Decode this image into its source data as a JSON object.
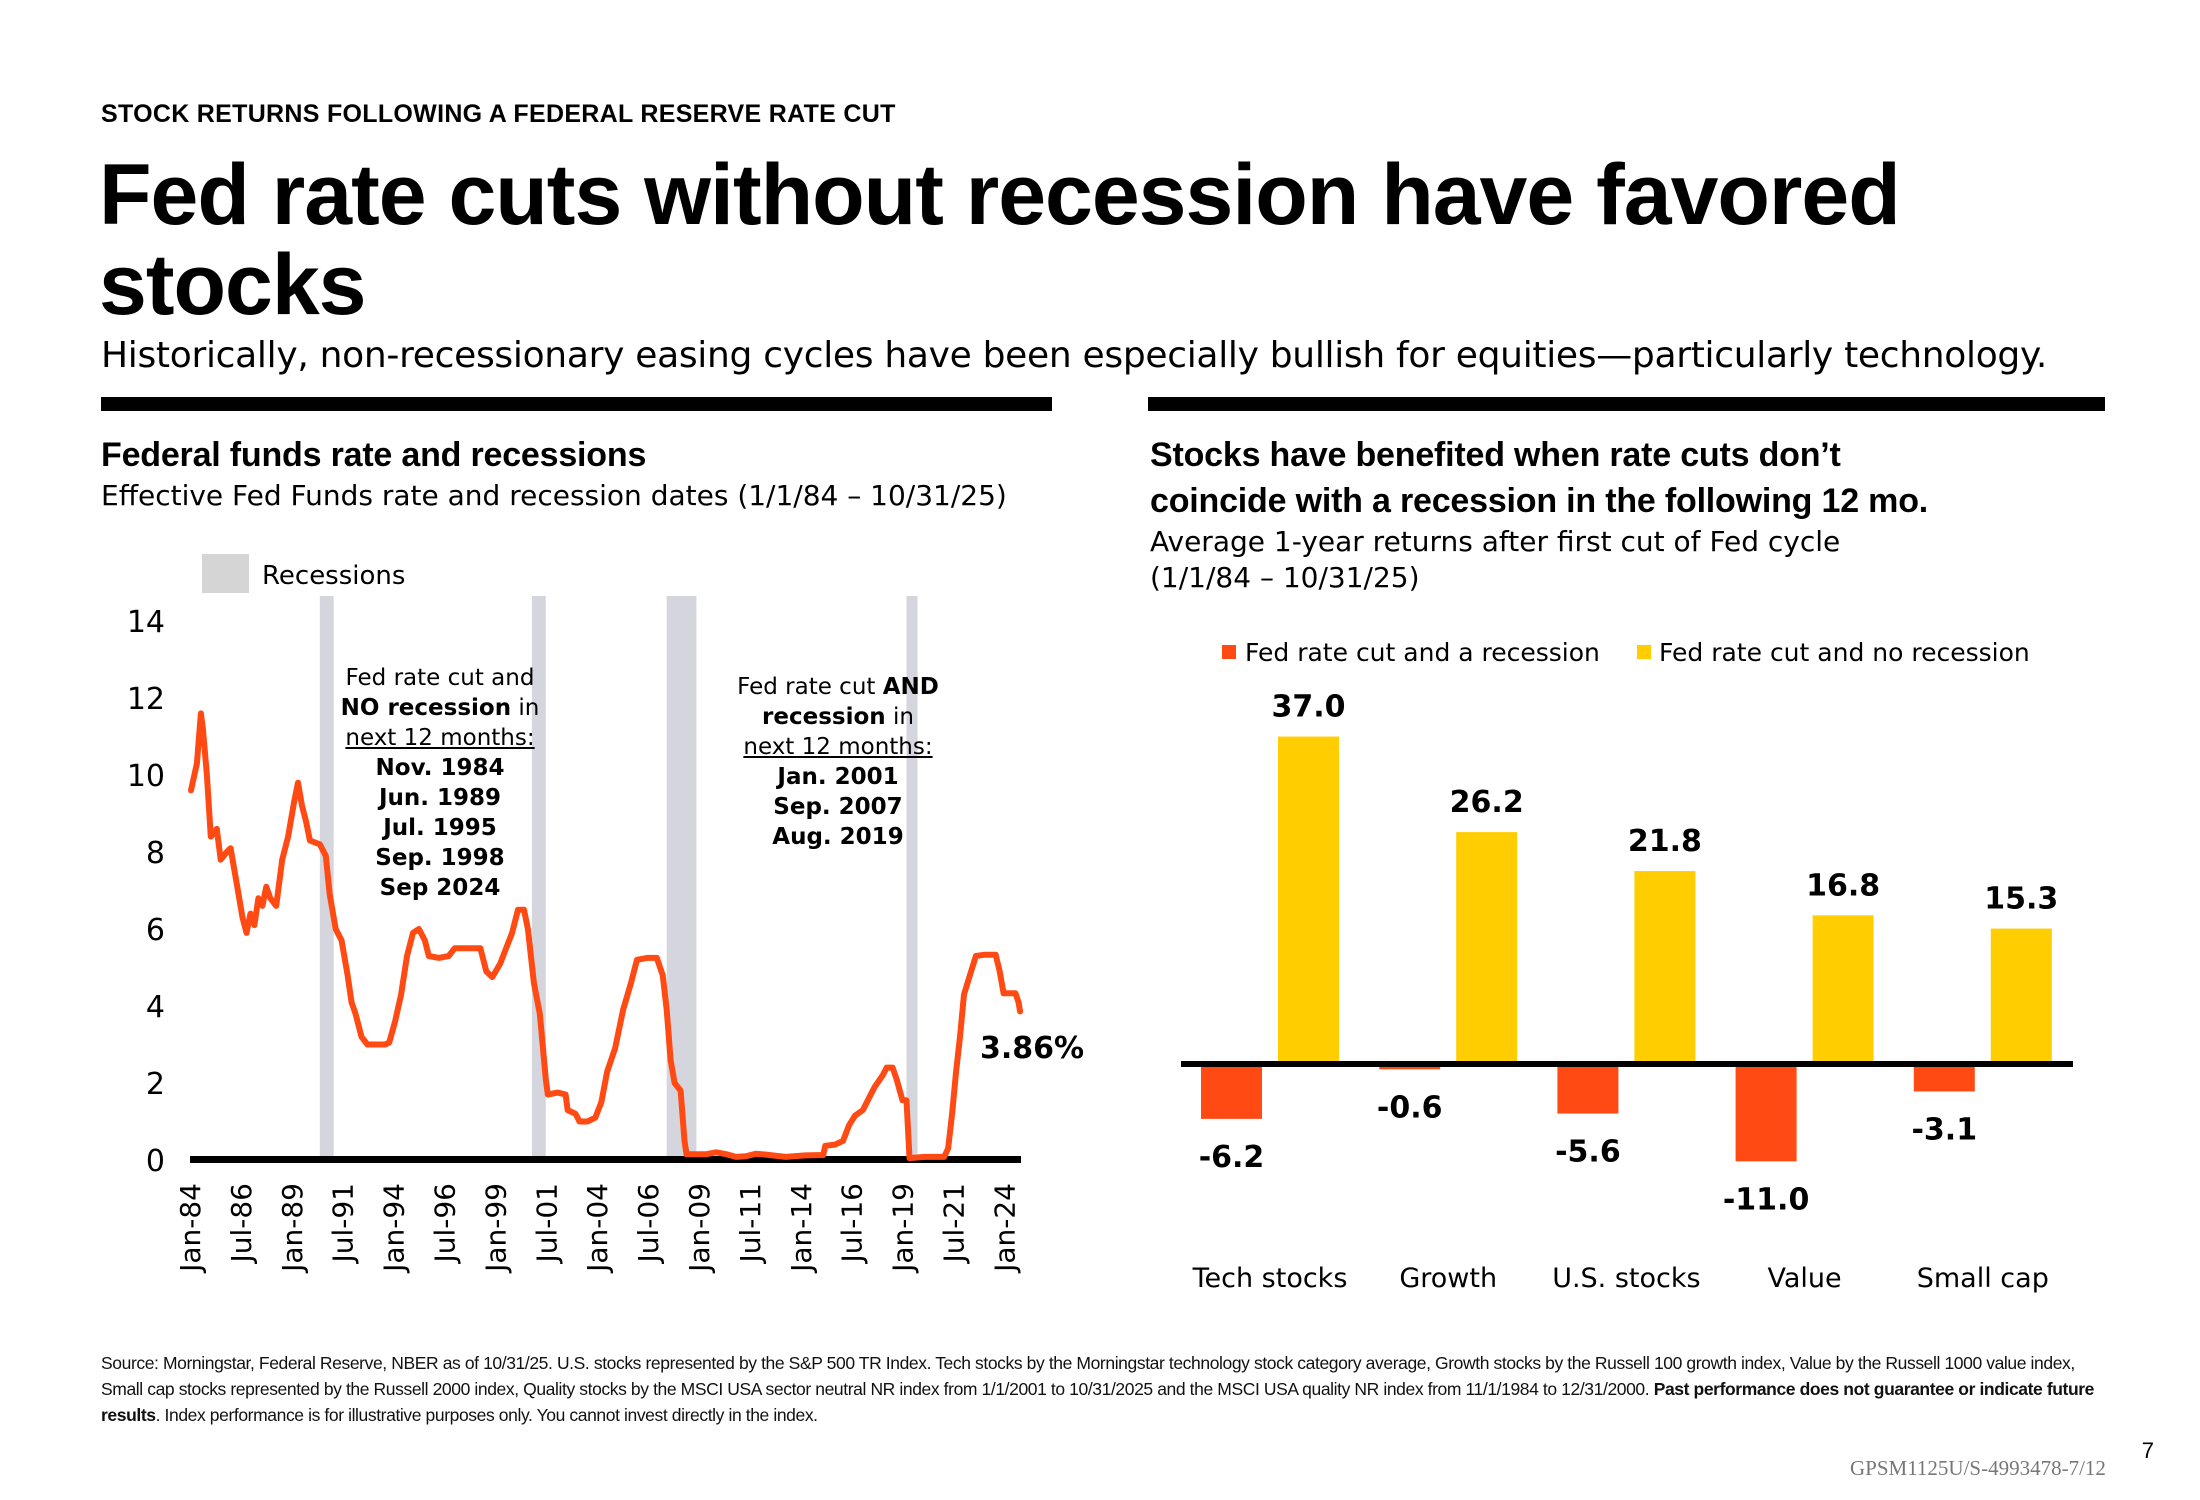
{
  "header": {
    "eyebrow": "STOCK RETURNS FOLLOWING A FEDERAL RESERVE RATE CUT",
    "title": "Fed rate cuts without recession have favored stocks",
    "subtitle": "Historically, non-recessionary easing cycles have been especially bullish for equities—particularly technology."
  },
  "colors": {
    "rate_line": "#ff4a14",
    "recession_band": "#d5d5de",
    "bar_recession": "#ff4a14",
    "bar_no_recession": "#ffcd00",
    "axis": "#000000"
  },
  "left_panel": {
    "title": "Federal funds rate and recessions",
    "subtitle": "Effective Fed Funds rate and recession dates (1/1/84 – 10/31/25)",
    "annotation_no_recession": {
      "line1": "Fed rate cut and",
      "line2_bold": "NO recession",
      "line2_rest": " in",
      "line3": "next 12 months:",
      "dates": [
        "Nov. 1984",
        "Jun. 1989",
        "Jul. 1995",
        "Sep. 1998",
        "Sep 2024"
      ]
    },
    "annotation_recession": {
      "line1_rest": "Fed rate cut ",
      "line1_bold": "AND",
      "line2_bold": "recession",
      "line2_rest": " in",
      "line3": "next 12 months:",
      "dates": [
        "Jan. 2001",
        "Sep. 2007",
        "Aug. 2019"
      ]
    }
  },
  "right_panel": {
    "title_line1": "Stocks have benefited when rate cuts don’t",
    "title_line2": "coincide with a recession in the following 12 mo.",
    "subtitle_line1": "Average 1-year returns after first cut of Fed cycle",
    "subtitle_line2": "(1/1/84 – 10/31/25)"
  },
  "chart_data": [
    {
      "type": "line",
      "title": "Federal funds rate and recessions",
      "xlabel": "",
      "ylabel": "",
      "ylim": [
        0,
        14
      ],
      "yticks": [
        0,
        2,
        4,
        6,
        8,
        10,
        12,
        14
      ],
      "xlim": [
        "1984-01",
        "2025-10"
      ],
      "xtick_labels": [
        "Jan-84",
        "Jul-86",
        "Jan-89",
        "Jul-91",
        "Jan-94",
        "Jul-96",
        "Jan-99",
        "Jul-01",
        "Jan-04",
        "Jul-06",
        "Jan-09",
        "Jul-11",
        "Jan-14",
        "Jul-16",
        "Jan-19",
        "Jul-21",
        "Jan-24"
      ],
      "grid": false,
      "legend": {
        "position": "top-left",
        "entries": [
          {
            "label": "Recessions",
            "kind": "band"
          }
        ]
      },
      "end_label": "3.86%",
      "recessions": [
        {
          "start": 1990.5,
          "end": 1991.2
        },
        {
          "start": 2001.2,
          "end": 2001.9
        },
        {
          "start": 2008.0,
          "end": 2009.5
        },
        {
          "start": 2020.1,
          "end": 2020.35
        }
      ],
      "series": [
        {
          "name": "Effective Fed Funds rate",
          "points": [
            [
              1984.0,
              9.6
            ],
            [
              1984.3,
              10.3
            ],
            [
              1984.5,
              11.6
            ],
            [
              1984.6,
              11.2
            ],
            [
              1984.8,
              10.0
            ],
            [
              1985.0,
              8.4
            ],
            [
              1985.3,
              8.6
            ],
            [
              1985.5,
              7.8
            ],
            [
              1985.8,
              8.0
            ],
            [
              1986.0,
              8.1
            ],
            [
              1986.3,
              7.2
            ],
            [
              1986.6,
              6.3
            ],
            [
              1986.8,
              5.9
            ],
            [
              1987.0,
              6.4
            ],
            [
              1987.2,
              6.1
            ],
            [
              1987.4,
              6.8
            ],
            [
              1987.6,
              6.6
            ],
            [
              1987.8,
              7.1
            ],
            [
              1988.0,
              6.8
            ],
            [
              1988.3,
              6.6
            ],
            [
              1988.6,
              7.8
            ],
            [
              1988.9,
              8.4
            ],
            [
              1989.2,
              9.3
            ],
            [
              1989.4,
              9.8
            ],
            [
              1989.6,
              9.2
            ],
            [
              1989.8,
              8.8
            ],
            [
              1990.0,
              8.3
            ],
            [
              1990.5,
              8.2
            ],
            [
              1990.8,
              7.9
            ],
            [
              1991.0,
              6.9
            ],
            [
              1991.3,
              6.0
            ],
            [
              1991.6,
              5.7
            ],
            [
              1991.9,
              4.8
            ],
            [
              1992.1,
              4.1
            ],
            [
              1992.3,
              3.8
            ],
            [
              1992.6,
              3.2
            ],
            [
              1992.9,
              3.0
            ],
            [
              1993.3,
              3.0
            ],
            [
              1993.8,
              3.0
            ],
            [
              1994.0,
              3.05
            ],
            [
              1994.3,
              3.6
            ],
            [
              1994.6,
              4.3
            ],
            [
              1994.9,
              5.3
            ],
            [
              1995.2,
              5.9
            ],
            [
              1995.5,
              6.0
            ],
            [
              1995.8,
              5.7
            ],
            [
              1996.0,
              5.3
            ],
            [
              1996.5,
              5.25
            ],
            [
              1997.0,
              5.3
            ],
            [
              1997.3,
              5.5
            ],
            [
              1997.8,
              5.5
            ],
            [
              1998.3,
              5.5
            ],
            [
              1998.6,
              5.5
            ],
            [
              1998.9,
              4.9
            ],
            [
              1999.2,
              4.75
            ],
            [
              1999.6,
              5.1
            ],
            [
              1999.9,
              5.5
            ],
            [
              2000.2,
              5.9
            ],
            [
              2000.5,
              6.5
            ],
            [
              2000.8,
              6.5
            ],
            [
              2001.0,
              6.0
            ],
            [
              2001.3,
              4.6
            ],
            [
              2001.6,
              3.8
            ],
            [
              2001.9,
              2.1
            ],
            [
              2002.0,
              1.7
            ],
            [
              2002.5,
              1.75
            ],
            [
              2002.9,
              1.7
            ],
            [
              2003.0,
              1.3
            ],
            [
              2003.4,
              1.2
            ],
            [
              2003.6,
              1.0
            ],
            [
              2004.0,
              1.0
            ],
            [
              2004.4,
              1.1
            ],
            [
              2004.7,
              1.5
            ],
            [
              2005.0,
              2.3
            ],
            [
              2005.4,
              2.9
            ],
            [
              2005.8,
              3.9
            ],
            [
              2006.2,
              4.6
            ],
            [
              2006.5,
              5.2
            ],
            [
              2007.0,
              5.25
            ],
            [
              2007.5,
              5.25
            ],
            [
              2007.8,
              4.8
            ],
            [
              2008.0,
              3.9
            ],
            [
              2008.2,
              2.6
            ],
            [
              2008.4,
              2.0
            ],
            [
              2008.7,
              1.8
            ],
            [
              2008.9,
              0.5
            ],
            [
              2009.0,
              0.15
            ],
            [
              2010.0,
              0.15
            ],
            [
              2010.5,
              0.2
            ],
            [
              2011.0,
              0.15
            ],
            [
              2011.5,
              0.08
            ],
            [
              2012.0,
              0.1
            ],
            [
              2012.5,
              0.16
            ],
            [
              2013.0,
              0.14
            ],
            [
              2014.0,
              0.08
            ],
            [
              2015.0,
              0.12
            ],
            [
              2015.9,
              0.13
            ],
            [
              2016.0,
              0.37
            ],
            [
              2016.5,
              0.4
            ],
            [
              2016.9,
              0.5
            ],
            [
              2017.2,
              0.9
            ],
            [
              2017.5,
              1.15
            ],
            [
              2017.9,
              1.3
            ],
            [
              2018.2,
              1.6
            ],
            [
              2018.5,
              1.9
            ],
            [
              2018.9,
              2.2
            ],
            [
              2019.1,
              2.4
            ],
            [
              2019.4,
              2.4
            ],
            [
              2019.6,
              2.1
            ],
            [
              2019.9,
              1.55
            ],
            [
              2020.1,
              1.55
            ],
            [
              2020.25,
              0.05
            ],
            [
              2021.0,
              0.08
            ],
            [
              2021.5,
              0.08
            ],
            [
              2022.0,
              0.08
            ],
            [
              2022.2,
              0.3
            ],
            [
              2022.4,
              1.2
            ],
            [
              2022.6,
              2.3
            ],
            [
              2022.8,
              3.2
            ],
            [
              2023.0,
              4.3
            ],
            [
              2023.3,
              4.8
            ],
            [
              2023.6,
              5.3
            ],
            [
              2024.0,
              5.33
            ],
            [
              2024.6,
              5.33
            ],
            [
              2024.8,
              4.9
            ],
            [
              2025.0,
              4.33
            ],
            [
              2025.6,
              4.33
            ],
            [
              2025.75,
              4.1
            ],
            [
              2025.83,
              3.86
            ]
          ]
        }
      ]
    },
    {
      "type": "bar",
      "title": "Stocks have benefited when rate cuts don’t coincide with a recession in the following 12 mo.",
      "subtitle": "Average 1-year returns after first cut of Fed cycle (1/1/84 – 10/31/25)",
      "xlabel": "",
      "ylabel": "",
      "ylim": [
        -12,
        40
      ],
      "grid": false,
      "legend": {
        "position": "top"
      },
      "categories": [
        "Tech stocks",
        "Growth",
        "U.S. stocks",
        "Value",
        "Small cap"
      ],
      "series": [
        {
          "name": "Fed rate cut and a recession",
          "values": [
            -6.2,
            -0.6,
            -5.6,
            -11.0,
            -3.1
          ],
          "labels": [
            "-6.2",
            "-0.6",
            "-5.6",
            "-11.0",
            "-3.1"
          ]
        },
        {
          "name": "Fed rate cut and no recession",
          "values": [
            37.0,
            26.2,
            21.8,
            16.8,
            15.3
          ],
          "labels": [
            "37.0",
            "26.2",
            "21.8",
            "16.8",
            "15.3"
          ]
        }
      ]
    }
  ],
  "footnote": {
    "text": "Source: Morningstar, Federal Reserve, NBER as of 10/31/25. U.S. stocks represented by the S&P 500 TR Index. Tech stocks by the Morningstar technology stock category average, Growth stocks by the Russell 100 growth index, Value by the Russell 1000 value index, Small cap stocks represented by the Russell 2000 index, Quality stocks by the MSCI USA sector neutral NR index from 1/1/2001 to 10/31/2025 and the MSCI USA quality NR index from 11/1/1984 to 12/31/2000. ",
    "bold": "Past performance does not guarantee or indicate future results",
    "tail": ". Index performance is for illustrative purposes only. You cannot invest directly in the index."
  },
  "page_number": "7",
  "doc_code": "GPSM1125U/S-4993478-7/12"
}
